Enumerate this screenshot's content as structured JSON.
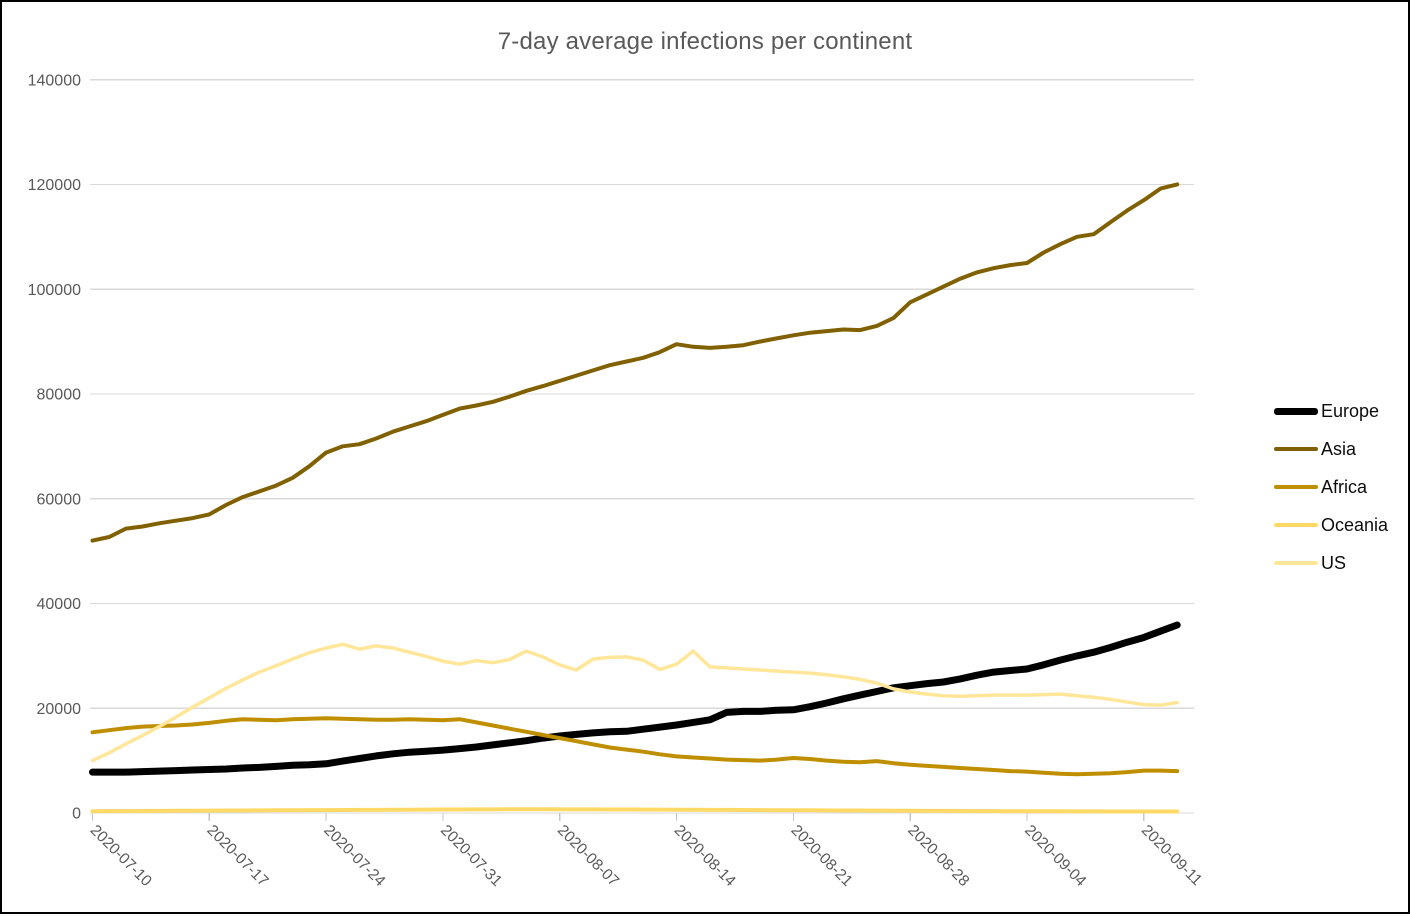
{
  "style": {
    "background": "#FFFFFF",
    "frame_border_color": "#000000",
    "grid_color": "#D9D9D9",
    "tick_color": "#C6C6C6",
    "axis_text_color": "#595959",
    "title_color": "#595959",
    "legend_text_color": "#0D0D0D"
  },
  "chart_data": {
    "type": "line",
    "title": "7-day average infections per continent",
    "xlabel": "",
    "ylabel": "",
    "ylim": [
      0,
      140000
    ],
    "y_tick_step": 20000,
    "y_tick_labels": [
      "0",
      "20000",
      "40000",
      "60000",
      "80000",
      "100000",
      "120000",
      "140000"
    ],
    "grid": "horizontal-only",
    "legend_position": "right",
    "x_tick_labels": [
      "2020-07-10",
      "2020-07-17",
      "2020-07-24",
      "2020-07-31",
      "2020-08-07",
      "2020-08-14",
      "2020-08-21",
      "2020-08-28",
      "2020-09-04",
      "2020-09-11"
    ],
    "x": [
      "2020-07-10",
      "2020-07-11",
      "2020-07-12",
      "2020-07-13",
      "2020-07-14",
      "2020-07-15",
      "2020-07-16",
      "2020-07-17",
      "2020-07-18",
      "2020-07-19",
      "2020-07-20",
      "2020-07-21",
      "2020-07-22",
      "2020-07-23",
      "2020-07-24",
      "2020-07-25",
      "2020-07-26",
      "2020-07-27",
      "2020-07-28",
      "2020-07-29",
      "2020-07-30",
      "2020-07-31",
      "2020-08-01",
      "2020-08-02",
      "2020-08-03",
      "2020-08-04",
      "2020-08-05",
      "2020-08-06",
      "2020-08-07",
      "2020-08-08",
      "2020-08-09",
      "2020-08-10",
      "2020-08-11",
      "2020-08-12",
      "2020-08-13",
      "2020-08-14",
      "2020-08-15",
      "2020-08-16",
      "2020-08-17",
      "2020-08-18",
      "2020-08-19",
      "2020-08-20",
      "2020-08-21",
      "2020-08-22",
      "2020-08-23",
      "2020-08-24",
      "2020-08-25",
      "2020-08-26",
      "2020-08-27",
      "2020-08-28",
      "2020-08-29",
      "2020-08-30",
      "2020-08-31",
      "2020-09-01",
      "2020-09-02",
      "2020-09-03",
      "2020-09-04",
      "2020-09-05",
      "2020-09-06",
      "2020-09-07",
      "2020-09-08",
      "2020-09-09",
      "2020-09-10",
      "2020-09-11",
      "2020-09-12",
      "2020-09-13"
    ],
    "series": [
      {
        "name": "Europe",
        "color": "#000000",
        "stroke_width": 7,
        "values": [
          7800,
          7800,
          7800,
          7900,
          8000,
          8100,
          8200,
          8300,
          8400,
          8600,
          8700,
          8900,
          9100,
          9200,
          9400,
          9900,
          10400,
          10900,
          11300,
          11600,
          11800,
          12000,
          12300,
          12600,
          13000,
          13400,
          13800,
          14300,
          14700,
          15000,
          15300,
          15500,
          15600,
          16000,
          16400,
          16800,
          17300,
          17800,
          19200,
          19400,
          19400,
          19600,
          19700,
          20300,
          21000,
          21800,
          22500,
          23200,
          23900,
          24300,
          24700,
          25000,
          25600,
          26300,
          26900,
          27200,
          27500,
          28300,
          29200,
          30000,
          30700,
          31600,
          32600,
          33500,
          34700,
          35900
        ]
      },
      {
        "name": "Asia",
        "color": "#806000",
        "stroke_width": 4,
        "values": [
          52000,
          52700,
          54300,
          54700,
          55300,
          55800,
          56300,
          57000,
          58800,
          60300,
          61400,
          62500,
          64000,
          66200,
          68800,
          70000,
          70400,
          71500,
          72800,
          73800,
          74800,
          76000,
          77200,
          77800,
          78500,
          79500,
          80600,
          81500,
          82500,
          83500,
          84500,
          85500,
          86200,
          86900,
          88000,
          89500,
          89000,
          88800,
          89000,
          89300,
          90000,
          90600,
          91200,
          91700,
          92000,
          92300,
          92200,
          93000,
          94500,
          97500,
          99000,
          100500,
          102000,
          103200,
          104000,
          104600,
          105000,
          107000,
          108600,
          110000,
          110500,
          112800,
          115000,
          117000,
          119200,
          120000
        ]
      },
      {
        "name": "Africa",
        "color": "#BF8F00",
        "stroke_width": 4,
        "values": [
          15400,
          15800,
          16200,
          16500,
          16600,
          16700,
          16900,
          17200,
          17600,
          17900,
          17800,
          17700,
          17900,
          18000,
          18100,
          18000,
          17900,
          17800,
          17800,
          17900,
          17800,
          17700,
          17900,
          17300,
          16700,
          16100,
          15500,
          14900,
          14300,
          13700,
          13100,
          12500,
          12100,
          11700,
          11200,
          10800,
          10600,
          10400,
          10200,
          10100,
          10000,
          10200,
          10500,
          10300,
          10000,
          9800,
          9700,
          9900,
          9500,
          9200,
          9000,
          8800,
          8600,
          8400,
          8200,
          8000,
          7900,
          7700,
          7500,
          7400,
          7500,
          7600,
          7800,
          8100,
          8100,
          8000
        ]
      },
      {
        "name": "Oceania",
        "color": "#FFD966",
        "stroke_width": 4,
        "values": [
          350,
          360,
          370,
          380,
          400,
          420,
          440,
          450,
          470,
          480,
          500,
          520,
          530,
          550,
          560,
          580,
          590,
          600,
          620,
          630,
          650,
          660,
          670,
          680,
          690,
          700,
          700,
          700,
          690,
          690,
          680,
          670,
          660,
          650,
          640,
          630,
          620,
          600,
          590,
          570,
          560,
          540,
          530,
          510,
          500,
          480,
          470,
          450,
          440,
          420,
          410,
          400,
          380,
          370,
          360,
          350,
          340,
          330,
          320,
          310,
          300,
          290,
          290,
          280,
          280,
          280
        ]
      },
      {
        "name": "US",
        "color": "#FFE699",
        "stroke_width": 3.5,
        "values": [
          10000,
          11500,
          13200,
          14800,
          16500,
          18300,
          20200,
          22000,
          23800,
          25400,
          26900,
          28100,
          29400,
          30600,
          31500,
          32200,
          31300,
          31900,
          31500,
          30700,
          29900,
          29000,
          28400,
          29100,
          28700,
          29300,
          30900,
          29800,
          28300,
          27300,
          29400,
          29700,
          29800,
          29200,
          27400,
          28400,
          30900,
          27900,
          27700,
          27500,
          27300,
          27100,
          26900,
          26700,
          26400,
          26000,
          25500,
          24800,
          23700,
          23100,
          22700,
          22400,
          22300,
          22400,
          22500,
          22500,
          22500,
          22600,
          22700,
          22400,
          22100,
          21700,
          21200,
          20700,
          20600,
          21100
        ]
      }
    ]
  }
}
